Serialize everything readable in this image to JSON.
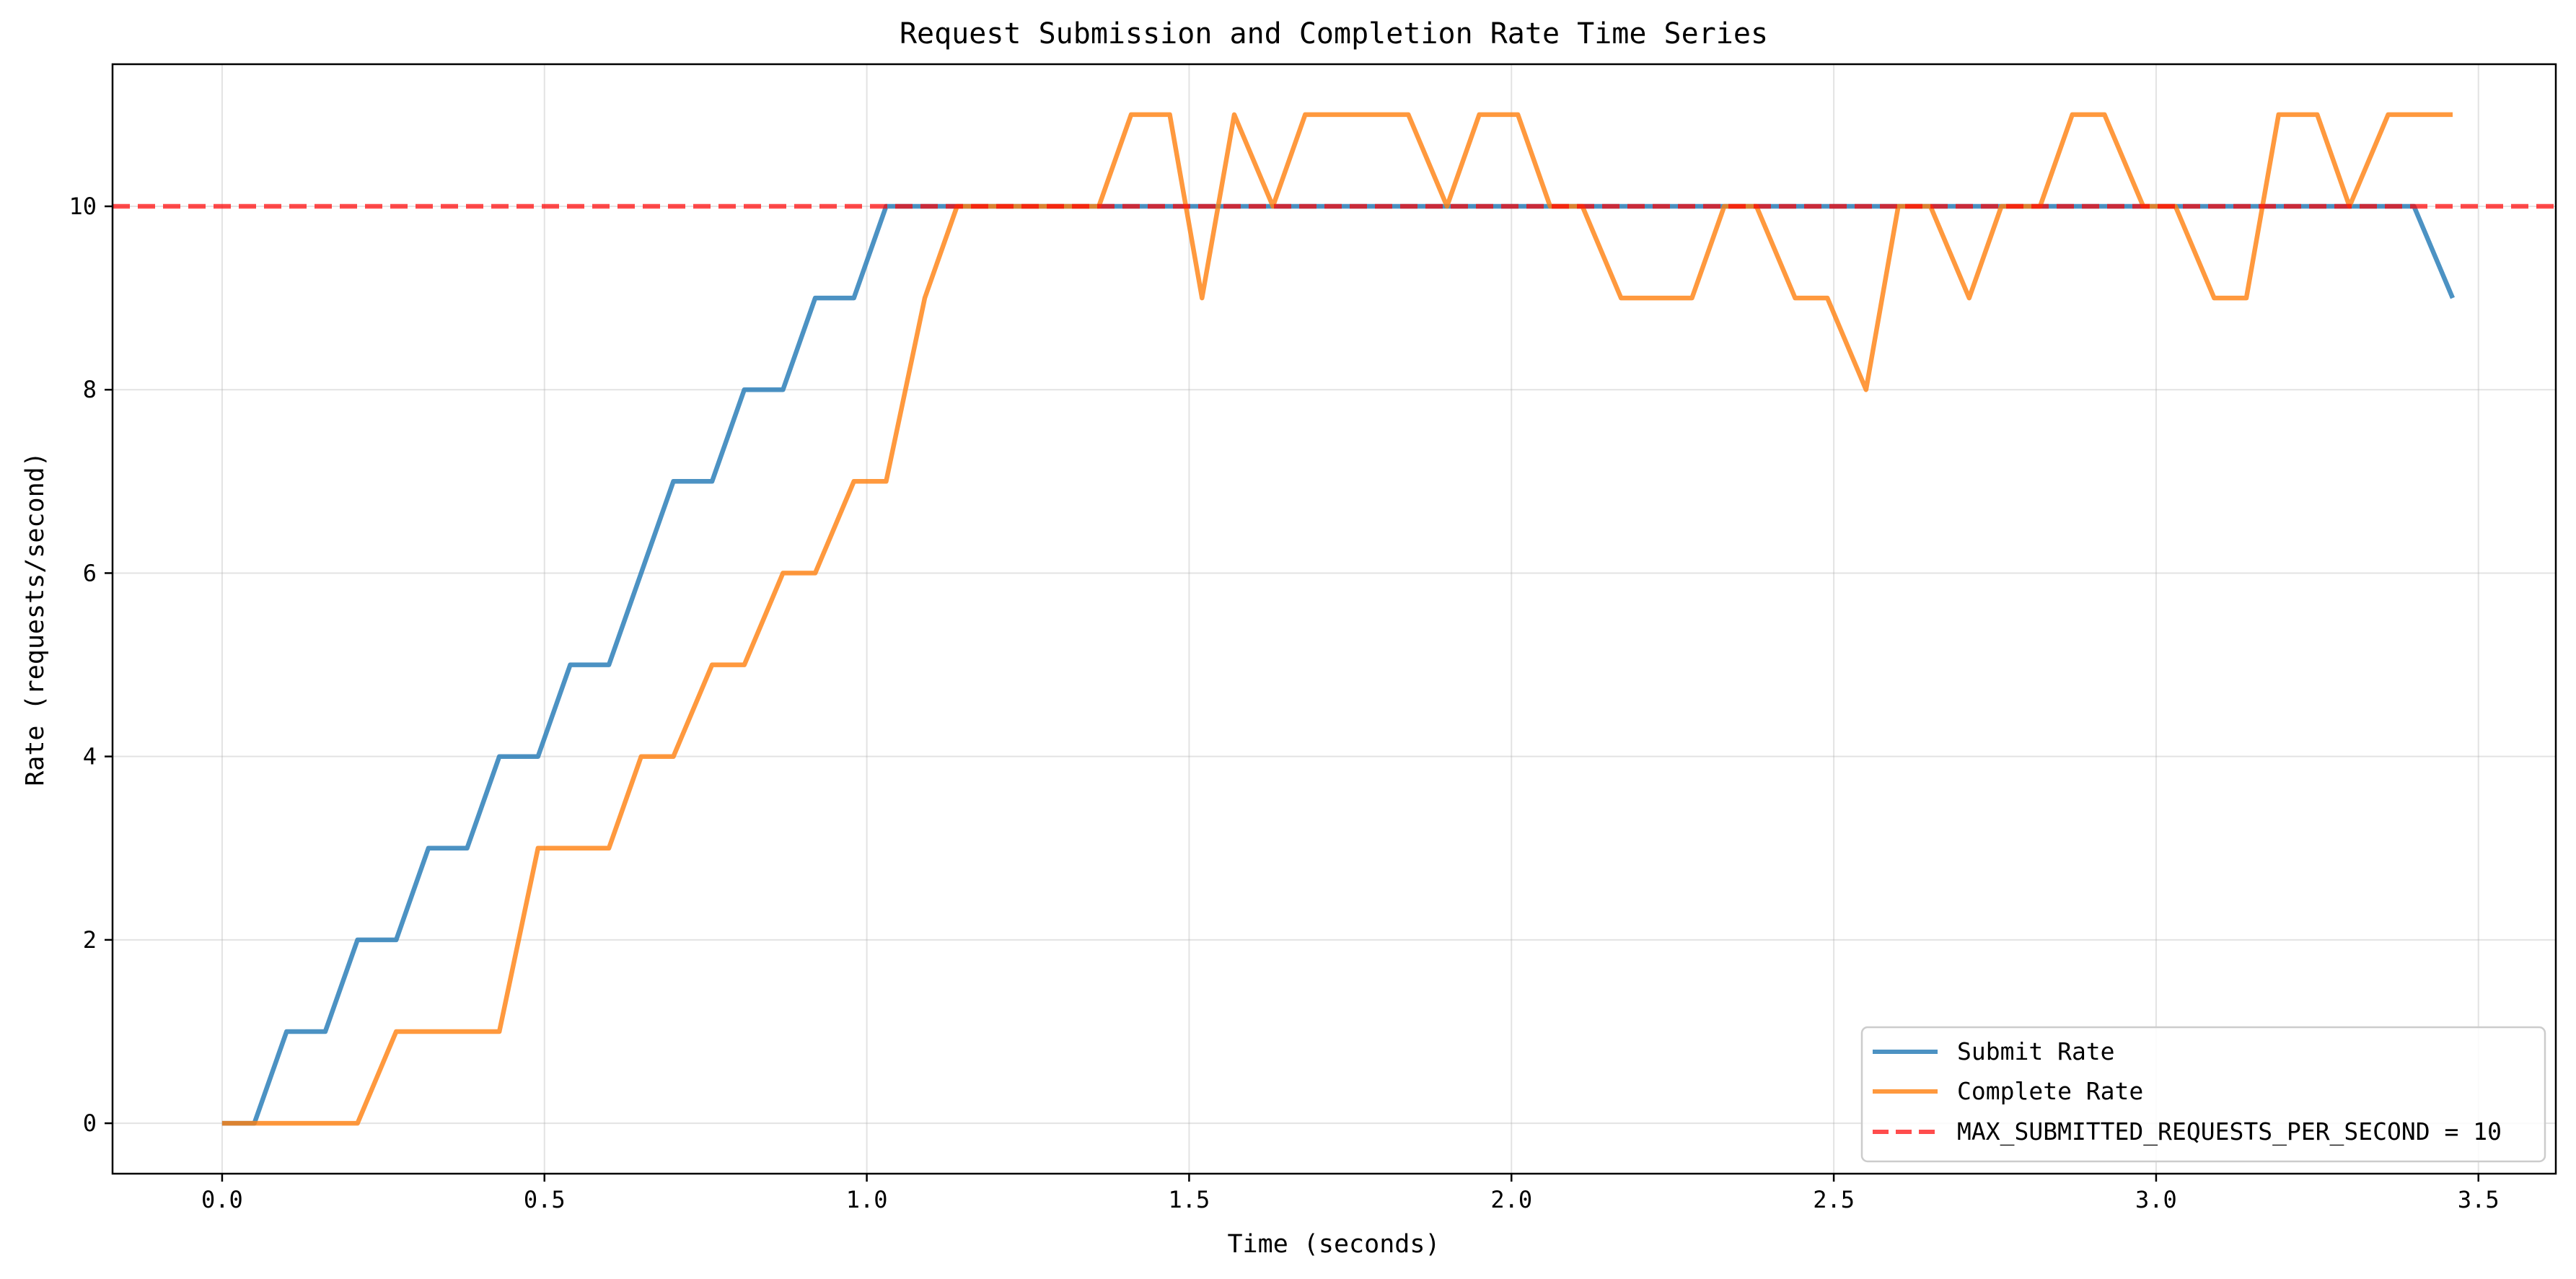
{
  "chart_data": {
    "type": "line",
    "title": "Request Submission and Completion Rate Time Series",
    "xlabel": "Time (seconds)",
    "ylabel": "Rate (requests/second)",
    "xlim": [
      -0.17,
      3.62
    ],
    "ylim": [
      -0.55,
      11.55
    ],
    "x_ticks": [
      0.0,
      0.5,
      1.0,
      1.5,
      2.0,
      2.5,
      3.0,
      3.5
    ],
    "x_tick_labels": [
      "0.0",
      "0.5",
      "1.0",
      "1.5",
      "2.0",
      "2.5",
      "3.0",
      "3.5"
    ],
    "y_ticks": [
      0,
      2,
      4,
      6,
      8,
      10
    ],
    "y_tick_labels": [
      "0",
      "2",
      "4",
      "6",
      "8",
      "10"
    ],
    "grid": true,
    "legend_position": "lower-right",
    "series": [
      {
        "name": "Submit Rate",
        "color": "#1f77b4",
        "style": "solid",
        "x": [
          0.0,
          0.05,
          0.1,
          0.16,
          0.21,
          0.27,
          0.32,
          0.38,
          0.43,
          0.49,
          0.54,
          0.6,
          0.65,
          0.7,
          0.76,
          0.81,
          0.87,
          0.92,
          0.98,
          1.03,
          1.09,
          1.14,
          1.2,
          1.25,
          1.3,
          1.36,
          1.41,
          1.47,
          1.52,
          1.57,
          1.63,
          1.68,
          1.74,
          1.79,
          1.84,
          1.9,
          1.95,
          2.01,
          2.06,
          2.11,
          2.17,
          2.22,
          2.28,
          2.33,
          2.38,
          2.44,
          2.49,
          2.55,
          2.6,
          2.65,
          2.71,
          2.76,
          2.82,
          2.87,
          2.92,
          2.98,
          3.03,
          3.09,
          3.14,
          3.19,
          3.25,
          3.3,
          3.36,
          3.4,
          3.46
        ],
        "y": [
          0,
          0,
          1,
          1,
          2,
          2,
          3,
          3,
          4,
          4,
          5,
          5,
          6,
          7,
          7,
          8,
          8,
          9,
          9,
          10,
          10,
          10,
          10,
          10,
          10,
          10,
          10,
          10,
          10,
          10,
          10,
          10,
          10,
          10,
          10,
          10,
          10,
          10,
          10,
          10,
          10,
          10,
          10,
          10,
          10,
          10,
          10,
          10,
          10,
          10,
          10,
          10,
          10,
          10,
          10,
          10,
          10,
          10,
          10,
          10,
          10,
          10,
          10,
          10,
          9
        ]
      },
      {
        "name": "Complete Rate",
        "color": "#ff7f0e",
        "style": "solid",
        "x": [
          0.0,
          0.05,
          0.1,
          0.16,
          0.21,
          0.27,
          0.32,
          0.38,
          0.43,
          0.49,
          0.54,
          0.6,
          0.65,
          0.7,
          0.76,
          0.81,
          0.87,
          0.92,
          0.98,
          1.03,
          1.09,
          1.14,
          1.2,
          1.25,
          1.3,
          1.36,
          1.41,
          1.47,
          1.52,
          1.57,
          1.63,
          1.68,
          1.74,
          1.79,
          1.84,
          1.9,
          1.95,
          2.01,
          2.06,
          2.11,
          2.17,
          2.22,
          2.28,
          2.33,
          2.38,
          2.44,
          2.49,
          2.55,
          2.6,
          2.65,
          2.71,
          2.76,
          2.82,
          2.87,
          2.92,
          2.98,
          3.03,
          3.09,
          3.14,
          3.19,
          3.25,
          3.3,
          3.36,
          3.41,
          3.46
        ],
        "y": [
          0,
          0,
          0,
          0,
          0,
          1,
          1,
          1,
          1,
          3,
          3,
          3,
          4,
          4,
          5,
          5,
          6,
          6,
          7,
          7,
          9,
          10,
          10,
          10,
          10,
          10,
          11,
          11,
          9,
          11,
          10,
          11,
          11,
          11,
          11,
          10,
          11,
          11,
          10,
          10,
          9,
          9,
          9,
          10,
          10,
          9,
          9,
          8,
          10,
          10,
          9,
          10,
          10,
          11,
          11,
          10,
          10,
          9,
          9,
          11,
          11,
          10,
          11,
          11,
          11
        ]
      },
      {
        "name": "MAX_SUBMITTED_REQUESTS_PER_SECOND = 10",
        "color": "#ff0000",
        "style": "dashed",
        "type": "hline",
        "y_value": 10
      }
    ]
  }
}
